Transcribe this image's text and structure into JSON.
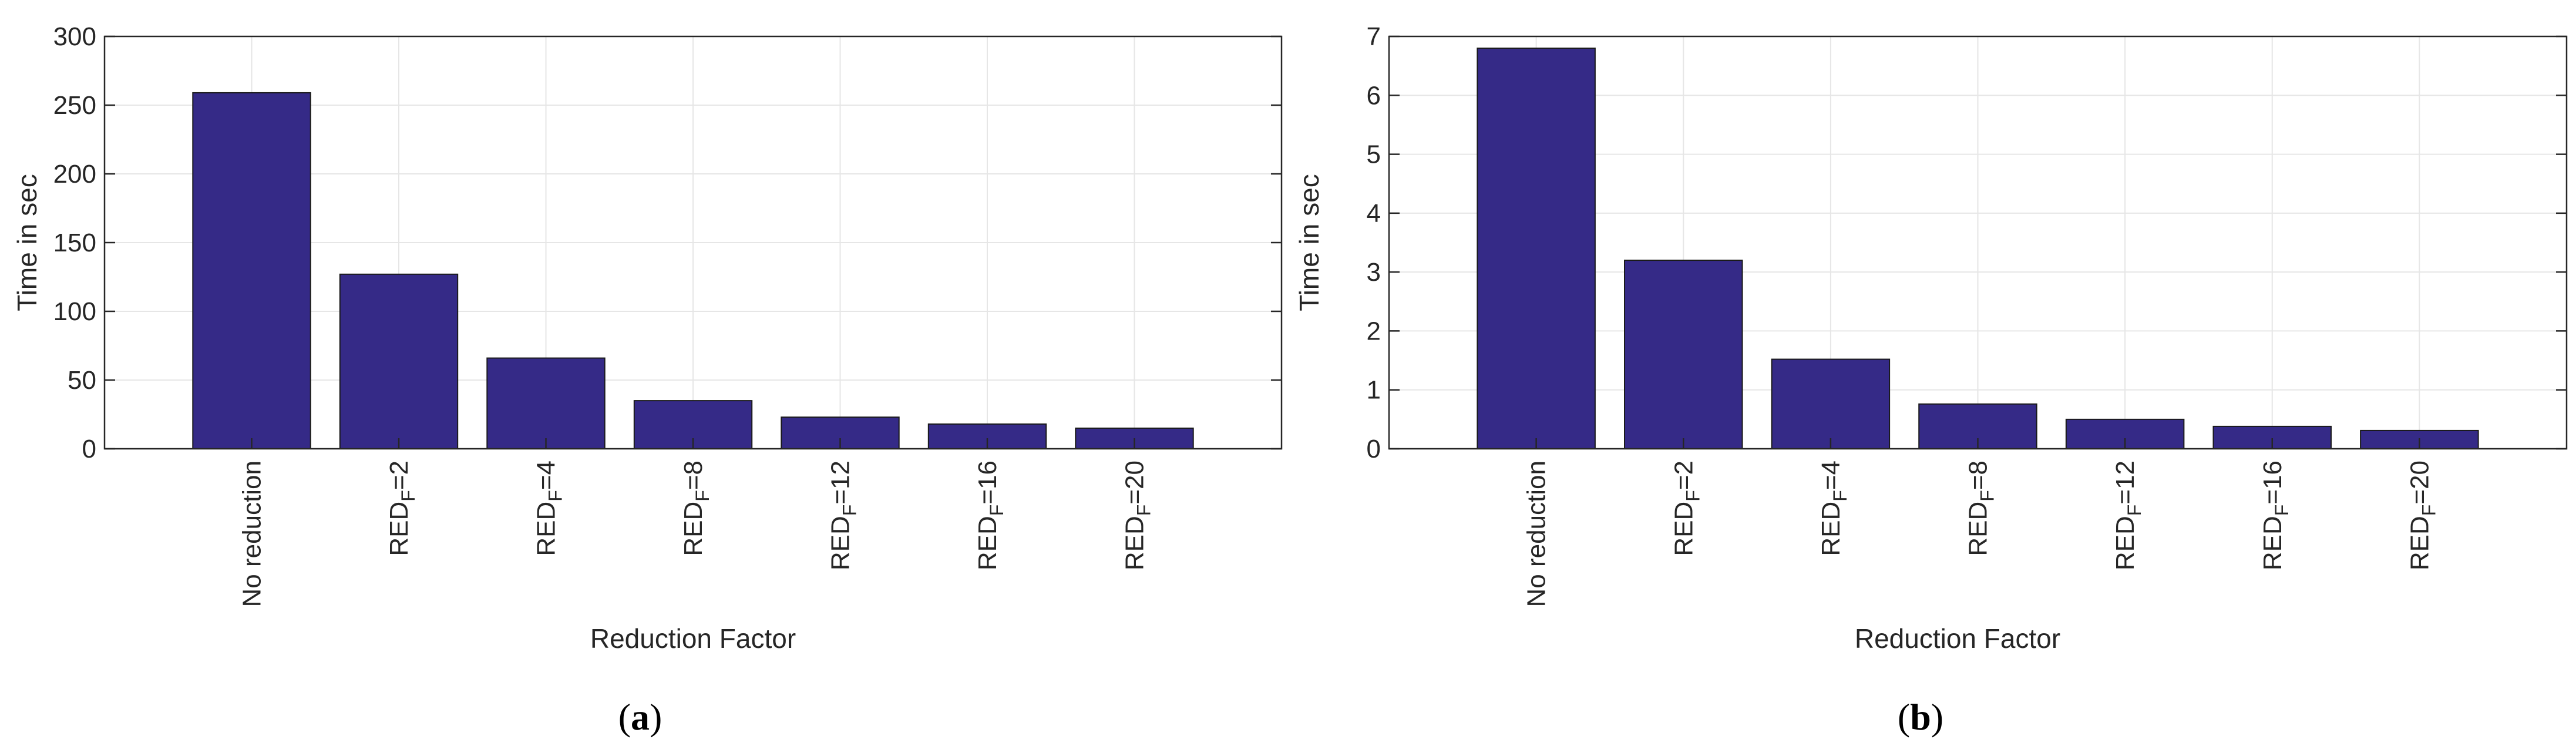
{
  "chart_data": [
    {
      "type": "bar",
      "panel_label": "(a)",
      "categories": [
        "No reduction",
        "RED_F=2",
        "RED_F=4",
        "RED_F=8",
        "RED_F=12",
        "RED_F=16",
        "RED_F=20"
      ],
      "values": [
        259,
        127,
        66,
        35,
        23,
        18,
        15
      ],
      "xlabel": "Reduction Factor",
      "ylabel": "Time in sec",
      "ylim": [
        0,
        300
      ],
      "yticks": [
        "0",
        "50",
        "100",
        "150",
        "200",
        "250",
        "300"
      ],
      "grid": true,
      "bar_color": "#352a87"
    },
    {
      "type": "bar",
      "panel_label": "(b)",
      "categories": [
        "No reduction",
        "RED_F=2",
        "RED_F=4",
        "RED_F=8",
        "RED_F=12",
        "RED_F=16",
        "RED_F=20"
      ],
      "values": [
        6.8,
        3.2,
        1.52,
        0.76,
        0.5,
        0.38,
        0.31
      ],
      "xlabel": "Reduction Factor",
      "ylabel": "Time in sec",
      "ylim": [
        0,
        7
      ],
      "yticks": [
        "0",
        "1",
        "2",
        "3",
        "4",
        "5",
        "6",
        "7"
      ],
      "grid": true,
      "bar_color": "#352a87"
    }
  ]
}
